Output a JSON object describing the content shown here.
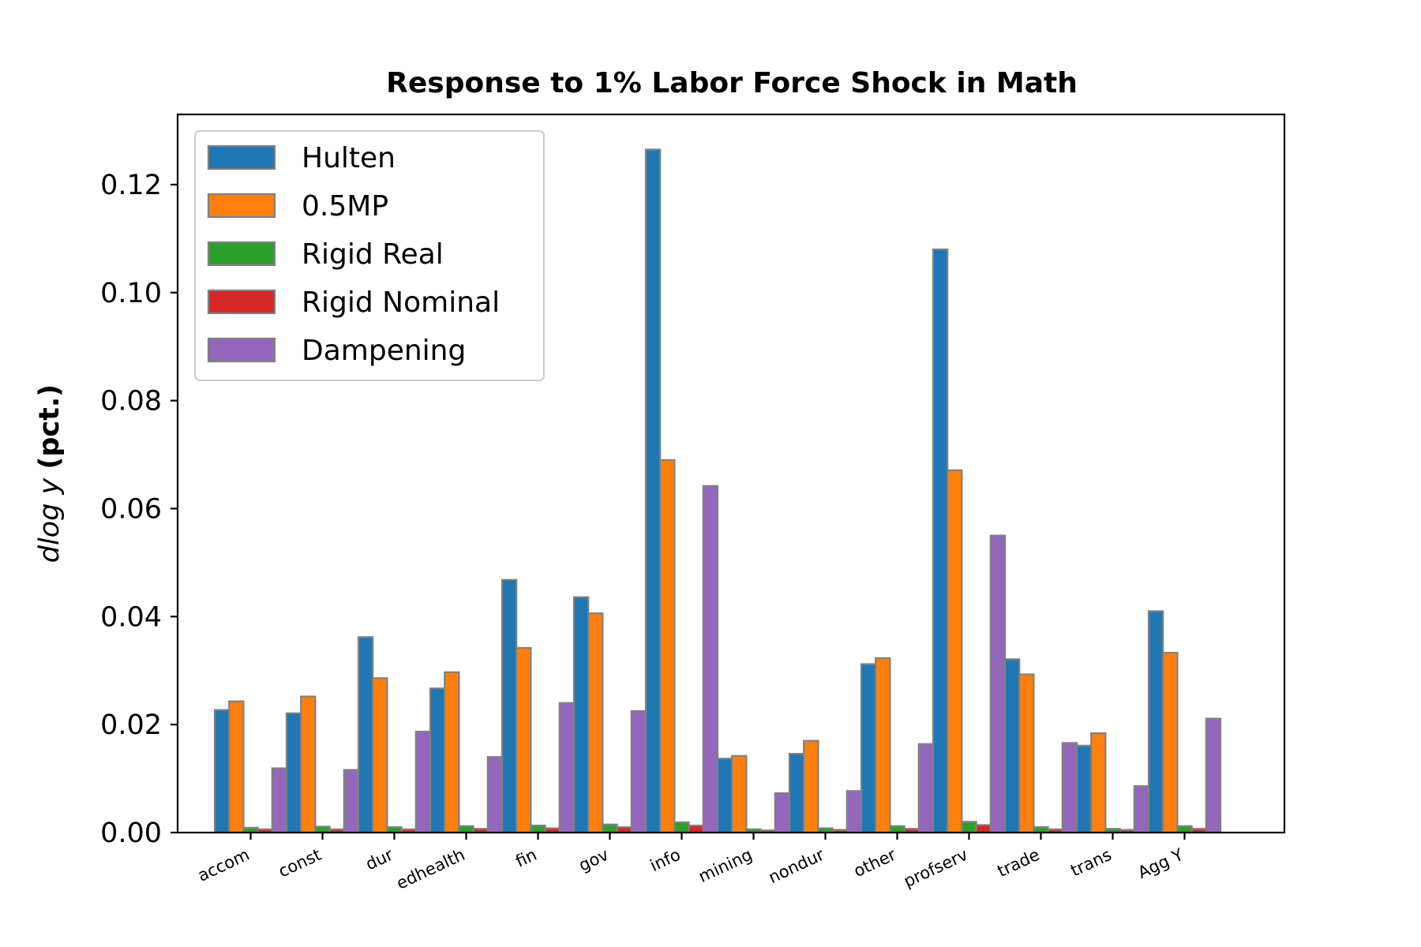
{
  "chart_data": {
    "type": "bar",
    "title": "Response to 1% Labor Force Shock in Math",
    "xlabel": "",
    "ylabel_math": "dlog y",
    "ylabel_unit": "(pct.)",
    "ylim": [
      0,
      0.133
    ],
    "yticks": [
      0.0,
      0.02,
      0.04,
      0.06,
      0.08,
      0.1,
      0.12
    ],
    "ytick_labels": [
      "0.00",
      "0.02",
      "0.04",
      "0.06",
      "0.08",
      "0.10",
      "0.12"
    ],
    "grid": false,
    "legend_position": "top-left",
    "categories": [
      "accom",
      "const",
      "dur",
      "edhealth",
      "fin",
      "gov",
      "info",
      "mining",
      "nondur",
      "other",
      "profserv",
      "trade",
      "trans",
      "Agg Y"
    ],
    "series": [
      {
        "name": "Hulten",
        "color": "#1f77b4",
        "values": [
          0.0227,
          0.0221,
          0.0362,
          0.0267,
          0.0468,
          0.0436,
          0.1265,
          0.0137,
          0.0146,
          0.0312,
          0.108,
          0.0321,
          0.0161,
          0.041
        ]
      },
      {
        "name": "0.5MP",
        "color": "#ff7f0e",
        "values": [
          0.0243,
          0.0252,
          0.0286,
          0.0297,
          0.0342,
          0.0406,
          0.069,
          0.0142,
          0.017,
          0.0323,
          0.0671,
          0.0293,
          0.0184,
          0.0333
        ]
      },
      {
        "name": "Rigid Real",
        "color": "#2ca02c",
        "values": [
          0.0009,
          0.0011,
          0.001,
          0.0012,
          0.0013,
          0.0015,
          0.0019,
          0.0006,
          0.0008,
          0.0012,
          0.002,
          0.001,
          0.0007,
          0.0012
        ]
      },
      {
        "name": "Rigid Nominal",
        "color": "#d62728",
        "values": [
          0.0006,
          0.0006,
          0.0006,
          0.0007,
          0.0008,
          0.001,
          0.0013,
          0.0004,
          0.0005,
          0.0007,
          0.0014,
          0.0006,
          0.0005,
          0.0007
        ]
      },
      {
        "name": "Dampening",
        "color": "#9467bd",
        "values": [
          0.0119,
          0.0116,
          0.0187,
          0.014,
          0.024,
          0.0225,
          0.0642,
          0.0073,
          0.0077,
          0.0164,
          0.055,
          0.0166,
          0.0086,
          0.0211
        ]
      }
    ]
  }
}
